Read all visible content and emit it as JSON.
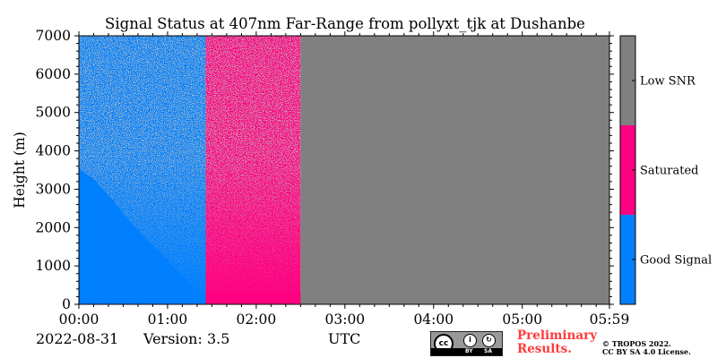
{
  "chart_data": {
    "type": "heatmap",
    "title": "Signal Status at 407nm Far-Range from pollyxt_tjk at Dushanbe",
    "xlabel": "UTC",
    "ylabel": "Height (m)",
    "x_ticks": [
      "00:00",
      "01:00",
      "02:00",
      "03:00",
      "04:00",
      "05:00",
      "05:59"
    ],
    "x_range_hours": [
      0,
      5.983
    ],
    "y_ticks": [
      0,
      1000,
      2000,
      3000,
      4000,
      5000,
      6000,
      7000
    ],
    "ylim": [
      0,
      7000
    ],
    "categories": [
      {
        "label": "Good Signal",
        "color": "#0080ff"
      },
      {
        "label": "Saturated",
        "color": "#ff0080"
      },
      {
        "label": "Low SNR",
        "color": "#808080"
      }
    ],
    "segments": [
      {
        "start_hour": 0.0,
        "end_hour": 1.43,
        "status": "Good Signal with Low SNR speckle; mostly Good Signal below ~3500 m decreasing with time"
      },
      {
        "start_hour": 1.43,
        "end_hour": 2.5,
        "status": "Saturated with Low SNR speckle; mostly Saturated below ~300 m"
      },
      {
        "start_hour": 2.5,
        "end_hour": 5.983,
        "status": "Low SNR"
      }
    ],
    "colorbar_position": "right",
    "grid": false
  },
  "footer": {
    "date": "2022-08-31",
    "version": "Version: 3.5",
    "preliminary": "Preliminary\nResults.",
    "copyright": "© TROPOS 2022.\nCC BY SA 4.0 License."
  },
  "badge": {
    "cc": "cc",
    "by": "BY",
    "sa": "SA"
  }
}
